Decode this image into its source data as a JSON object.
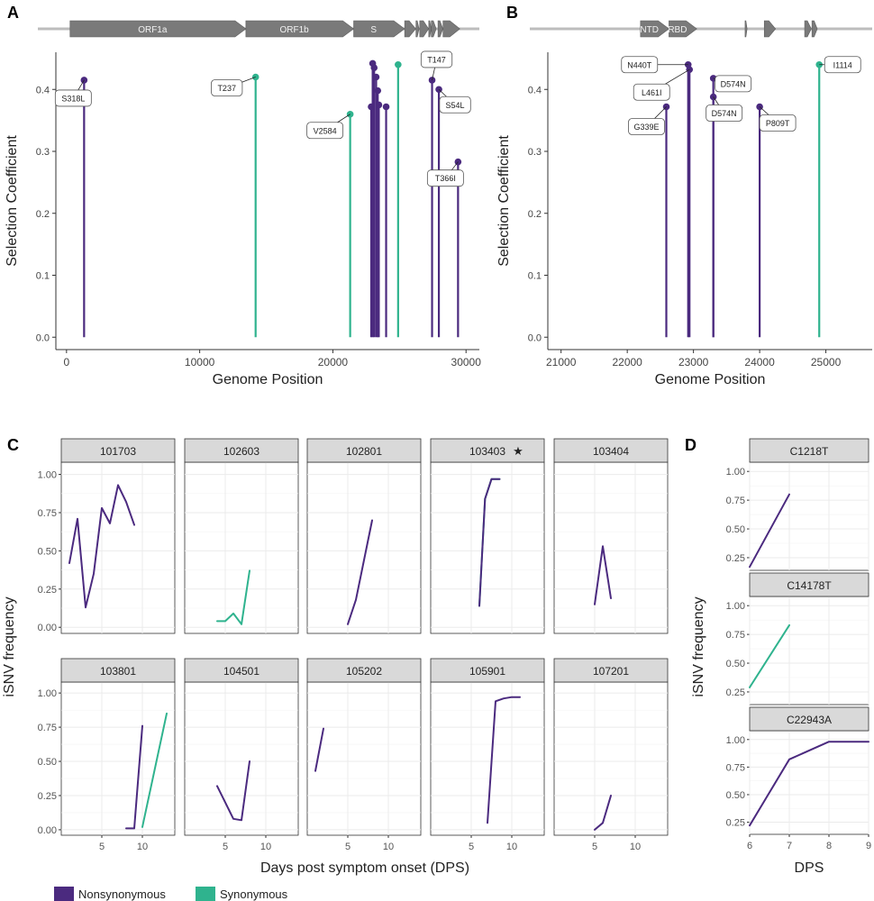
{
  "colors": {
    "nonsynonymous": "#4b2a7f",
    "synonymous": "#2fb38e",
    "gene": "#7a7a7a",
    "genome_line": "#bdbdbd",
    "grid": "#ebebeb",
    "strip": "#d9d9d9"
  },
  "legend": {
    "nonsynonymous": "Nonsynonymous",
    "synonymous": "Synonymous"
  },
  "chart_data": [
    {
      "panel": "A",
      "type": "lollipop",
      "xlabel": "Genome Position",
      "ylabel": "Selection Coefficient",
      "xlim": [
        -800,
        31000
      ],
      "ylim": [
        -0.02,
        0.46
      ],
      "xticks": [
        0,
        10000,
        20000,
        30000
      ],
      "xtick_labels": [
        "0",
        "10000",
        "20000",
        "30000"
      ],
      "yticks": [
        0,
        0.1,
        0.2,
        0.3,
        0.4
      ],
      "ytick_labels": [
        "0.0",
        "0.1",
        "0.2",
        "0.3",
        "0.4"
      ],
      "genes": [
        {
          "name": "ORF1a",
          "start": 266,
          "end": 13468,
          "label": true
        },
        {
          "name": "ORF1b",
          "start": 13468,
          "end": 21555,
          "label": true
        },
        {
          "name": "S",
          "start": 21563,
          "end": 25384,
          "label": true
        },
        {
          "name": "",
          "start": 25393,
          "end": 26220,
          "label": false
        },
        {
          "name": "",
          "start": 26245,
          "end": 26472,
          "label": false
        },
        {
          "name": "",
          "start": 26523,
          "end": 27191,
          "label": false
        },
        {
          "name": "",
          "start": 27202,
          "end": 27387,
          "label": false
        },
        {
          "name": "",
          "start": 27394,
          "end": 27759,
          "label": false
        },
        {
          "name": "",
          "start": 27894,
          "end": 28259,
          "label": false
        },
        {
          "name": "",
          "start": 28274,
          "end": 29533,
          "label": false
        }
      ],
      "points": [
        {
          "x": 1320,
          "y": 0.415,
          "type": "nonsynonymous",
          "label": "S318L"
        },
        {
          "x": 14200,
          "y": 0.42,
          "type": "synonymous",
          "label": "T237"
        },
        {
          "x": 21300,
          "y": 0.36,
          "type": "synonymous",
          "label": "V2584"
        },
        {
          "x": 22880,
          "y": 0.372,
          "type": "nonsynonymous",
          "label": ""
        },
        {
          "x": 22990,
          "y": 0.442,
          "type": "nonsynonymous",
          "label": ""
        },
        {
          "x": 23100,
          "y": 0.435,
          "type": "nonsynonymous",
          "label": ""
        },
        {
          "x": 23250,
          "y": 0.42,
          "type": "nonsynonymous",
          "label": ""
        },
        {
          "x": 23370,
          "y": 0.398,
          "type": "nonsynonymous",
          "label": ""
        },
        {
          "x": 23450,
          "y": 0.375,
          "type": "nonsynonymous",
          "label": ""
        },
        {
          "x": 24000,
          "y": 0.372,
          "type": "nonsynonymous",
          "label": ""
        },
        {
          "x": 24900,
          "y": 0.44,
          "type": "synonymous",
          "label": ""
        },
        {
          "x": 27450,
          "y": 0.415,
          "type": "nonsynonymous",
          "label": "T147"
        },
        {
          "x": 27960,
          "y": 0.4,
          "type": "nonsynonymous",
          "label": "S54L"
        },
        {
          "x": 29400,
          "y": 0.283,
          "type": "nonsynonymous",
          "label": "T366I"
        }
      ]
    },
    {
      "panel": "B",
      "type": "lollipop",
      "xlabel": "Genome Position",
      "ylabel": "Selection Coefficient",
      "xlim": [
        20800,
        25700
      ],
      "ylim": [
        -0.02,
        0.46
      ],
      "xticks": [
        21000,
        22000,
        23000,
        24000,
        25000
      ],
      "xtick_labels": [
        "21000",
        "22000",
        "23000",
        "24000",
        "25000"
      ],
      "yticks": [
        0,
        0.1,
        0.2,
        0.3,
        0.4
      ],
      "ytick_labels": [
        "0.0",
        "0.1",
        "0.2",
        "0.3",
        "0.4"
      ],
      "genes": [
        {
          "name": "NTD",
          "start": 22200,
          "end": 22630,
          "label": true
        },
        {
          "name": "RBD",
          "start": 22630,
          "end": 23050,
          "label": true
        },
        {
          "name": "",
          "start": 23780,
          "end": 23810,
          "label": false
        },
        {
          "name": "",
          "start": 24070,
          "end": 24240,
          "label": false
        },
        {
          "name": "",
          "start": 24680,
          "end": 24780,
          "label": false
        },
        {
          "name": "",
          "start": 24790,
          "end": 24870,
          "label": false
        }
      ],
      "points": [
        {
          "x": 22590,
          "y": 0.372,
          "type": "nonsynonymous",
          "label": "G339E"
        },
        {
          "x": 22920,
          "y": 0.44,
          "type": "nonsynonymous",
          "label": "N440T"
        },
        {
          "x": 22940,
          "y": 0.432,
          "type": "nonsynonymous",
          "label": "L461I"
        },
        {
          "x": 23300,
          "y": 0.418,
          "type": "nonsynonymous",
          "label": "D574N"
        },
        {
          "x": 23300,
          "y": 0.388,
          "type": "nonsynonymous",
          "label": "D574N"
        },
        {
          "x": 24000,
          "y": 0.372,
          "type": "nonsynonymous",
          "label": "P809T"
        },
        {
          "x": 24900,
          "y": 0.44,
          "type": "synonymous",
          "label": "I1114"
        }
      ]
    },
    {
      "panel": "C",
      "type": "line",
      "xlabel": "Days post symptom onset (DPS)",
      "ylabel": "iSNV frequency",
      "xlim": [
        0,
        14
      ],
      "ylim": [
        -0.04,
        1.08
      ],
      "xticks": [
        5,
        10
      ],
      "xtick_labels": [
        "5",
        "10"
      ],
      "yticks": [
        0,
        0.25,
        0.5,
        0.75,
        1
      ],
      "ytick_labels": [
        "0.00",
        "0.25",
        "0.50",
        "0.75",
        "1.00"
      ],
      "facets": [
        {
          "title": "101703",
          "starred": false,
          "series": [
            {
              "type": "nonsynonymous",
              "x": [
                1,
                2,
                3,
                4,
                5,
                6,
                7,
                8,
                9
              ],
              "y": [
                0.42,
                0.71,
                0.13,
                0.35,
                0.78,
                0.68,
                0.93,
                0.82,
                0.67
              ]
            }
          ]
        },
        {
          "title": "102603",
          "starred": false,
          "series": [
            {
              "type": "synonymous",
              "x": [
                4,
                5,
                6,
                7,
                8
              ],
              "y": [
                0.04,
                0.04,
                0.09,
                0.02,
                0.37
              ]
            }
          ]
        },
        {
          "title": "102801",
          "starred": false,
          "series": [
            {
              "type": "nonsynonymous",
              "x": [
                5,
                6,
                8
              ],
              "y": [
                0.02,
                0.18,
                0.7
              ]
            }
          ]
        },
        {
          "title": "103403",
          "starred": true,
          "series": [
            {
              "type": "synonymous",
              "x": [
                6,
                6.7,
                7.5,
                8.5
              ],
              "y": [
                0.14,
                0.84,
                0.97,
                0.97
              ]
            },
            {
              "type": "nonsynonymous",
              "x": [
                6,
                6.7,
                7.5,
                8.5
              ],
              "y": [
                0.14,
                0.84,
                0.97,
                0.97
              ]
            }
          ]
        },
        {
          "title": "103404",
          "starred": false,
          "series": [
            {
              "type": "nonsynonymous",
              "x": [
                5,
                6,
                7
              ],
              "y": [
                0.15,
                0.53,
                0.19
              ]
            }
          ]
        },
        {
          "title": "103801",
          "starred": false,
          "series": [
            {
              "type": "nonsynonymous",
              "x": [
                8,
                9,
                10
              ],
              "y": [
                0.01,
                0.01,
                0.76
              ]
            },
            {
              "type": "synonymous",
              "x": [
                10,
                13
              ],
              "y": [
                0.02,
                0.85
              ]
            }
          ]
        },
        {
          "title": "104501",
          "starred": false,
          "series": [
            {
              "type": "nonsynonymous",
              "x": [
                4,
                6,
                7,
                8
              ],
              "y": [
                0.32,
                0.08,
                0.07,
                0.5
              ]
            }
          ]
        },
        {
          "title": "105202",
          "starred": false,
          "series": [
            {
              "type": "nonsynonymous",
              "x": [
                1,
                2
              ],
              "y": [
                0.43,
                0.74
              ]
            }
          ]
        },
        {
          "title": "105901",
          "starred": false,
          "series": [
            {
              "type": "nonsynonymous",
              "x": [
                7,
                8,
                9,
                10,
                11
              ],
              "y": [
                0.05,
                0.94,
                0.96,
                0.97,
                0.97
              ]
            }
          ]
        },
        {
          "title": "107201",
          "starred": false,
          "series": [
            {
              "type": "nonsynonymous",
              "x": [
                5,
                6,
                7
              ],
              "y": [
                0.0,
                0.05,
                0.25
              ]
            }
          ]
        }
      ]
    },
    {
      "panel": "D",
      "type": "line",
      "xlabel": "DPS",
      "ylabel": "iSNV frequency",
      "xlim": [
        6,
        9
      ],
      "ylim": [
        0.14,
        1.08
      ],
      "xticks": [
        6,
        7,
        8,
        9
      ],
      "xtick_labels": [
        "6",
        "7",
        "8",
        "9"
      ],
      "yticks": [
        0.25,
        0.5,
        0.75,
        1
      ],
      "ytick_labels": [
        "0.25",
        "0.50",
        "0.75",
        "1.00"
      ],
      "facets": [
        {
          "title": "C1218T",
          "series": [
            {
              "type": "nonsynonymous",
              "x": [
                6,
                7
              ],
              "y": [
                0.17,
                0.8
              ]
            }
          ]
        },
        {
          "title": "C14178T",
          "series": [
            {
              "type": "synonymous",
              "x": [
                6,
                7
              ],
              "y": [
                0.29,
                0.83
              ]
            }
          ]
        },
        {
          "title": "C22943A",
          "series": [
            {
              "type": "nonsynonymous",
              "x": [
                6,
                7,
                8,
                9
              ],
              "y": [
                0.22,
                0.82,
                0.98,
                0.98
              ]
            }
          ]
        }
      ]
    }
  ]
}
